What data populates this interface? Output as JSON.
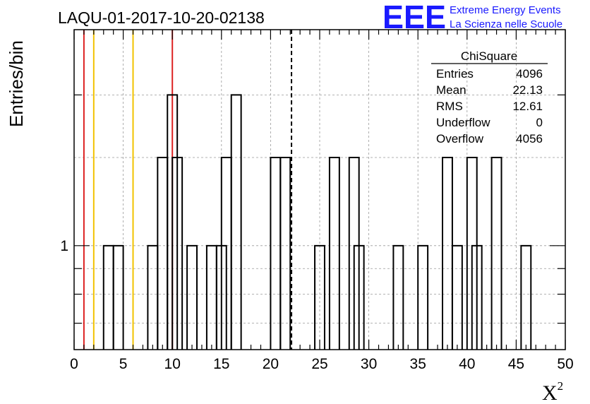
{
  "title": "LAQU-01-2017-10-20-02138",
  "logo": {
    "mark": "EEE",
    "line1": "Extreme Energy Events",
    "line2": "La Scienza nelle Scuole",
    "color": "#1a1aff"
  },
  "chart_data": {
    "type": "bar",
    "xlabel": "X",
    "xlabel_sup": "2",
    "ylabel": "Entries/bin",
    "xlim": [
      0,
      50
    ],
    "ylim": [
      0.62,
      2.7
    ],
    "yscale": "log",
    "bin_width": 1,
    "x_ticks": [
      0,
      5,
      10,
      15,
      20,
      25,
      30,
      35,
      40,
      45,
      50
    ],
    "y_tick_labels": [
      {
        "value": 1,
        "label": "1"
      }
    ],
    "grid": true,
    "bins": [
      {
        "x": 3,
        "value": 1
      },
      {
        "x": 4,
        "value": 1
      },
      {
        "x": 7.5,
        "value": 1
      },
      {
        "x": 8.5,
        "value": 1.5
      },
      {
        "x": 9.5,
        "value": 2
      },
      {
        "x": 10,
        "value": 1.5
      },
      {
        "x": 11.5,
        "value": 1
      },
      {
        "x": 13.5,
        "value": 1
      },
      {
        "x": 14.5,
        "value": 1
      },
      {
        "x": 15,
        "value": 1.5
      },
      {
        "x": 16,
        "value": 2
      },
      {
        "x": 20,
        "value": 1.5
      },
      {
        "x": 21,
        "value": 1.5
      },
      {
        "x": 24.5,
        "value": 1
      },
      {
        "x": 26,
        "value": 1.5
      },
      {
        "x": 28,
        "value": 1.5
      },
      {
        "x": 28.5,
        "value": 1
      },
      {
        "x": 32.5,
        "value": 1
      },
      {
        "x": 35,
        "value": 1
      },
      {
        "x": 37.5,
        "value": 1.5
      },
      {
        "x": 38.5,
        "value": 1
      },
      {
        "x": 40,
        "value": 1.5
      },
      {
        "x": 40.5,
        "value": 1
      },
      {
        "x": 42.5,
        "value": 1.5
      },
      {
        "x": 45.5,
        "value": 1
      }
    ],
    "vertical_lines": [
      {
        "x": 1,
        "color": "#dd2222",
        "style": "solid"
      },
      {
        "x": 2,
        "color": "#f2c200",
        "style": "solid"
      },
      {
        "x": 6,
        "color": "#f2c200",
        "style": "solid"
      },
      {
        "x": 10,
        "color": "#dd2222",
        "style": "solid"
      },
      {
        "x": 22.13,
        "color": "#000000",
        "style": "dashed"
      }
    ],
    "stats": {
      "title": "ChiSquare",
      "rows": [
        {
          "label": "Entries",
          "value": "4096"
        },
        {
          "label": "Mean",
          "value": "22.13"
        },
        {
          "label": "RMS",
          "value": "12.61"
        },
        {
          "label": "Underflow",
          "value": "0"
        },
        {
          "label": "Overflow",
          "value": "4056"
        }
      ]
    }
  }
}
